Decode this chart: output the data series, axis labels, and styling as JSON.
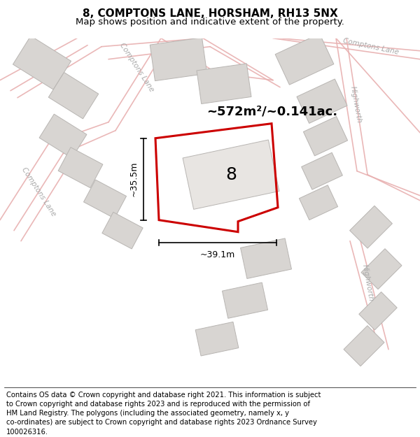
{
  "title_line1": "8, COMPTONS LANE, HORSHAM, RH13 5NX",
  "title_line2": "Map shows position and indicative extent of the property.",
  "bg_color": "#f2f0ee",
  "road_color": "#e8b0b0",
  "building_color": "#d8d5d2",
  "building_edge_color": "#b8b5b2",
  "plot_color": "#cc0000",
  "label_area": "~572m²/~0.141ac.",
  "label_number": "8",
  "label_width": "~39.1m",
  "label_height": "~35.5m",
  "title_fontsize": 11,
  "subtitle_fontsize": 9.5,
  "footer_fontsize": 7.2,
  "footer_lines": [
    "Contains OS data © Crown copyright and database right 2021. This information is subject",
    "to Crown copyright and database rights 2023 and is reproduced with the permission of",
    "HM Land Registry. The polygons (including the associated geometry, namely x, y",
    "co-ordinates) are subject to Crown copyright and database rights 2023 Ordnance Survey",
    "100026316."
  ]
}
